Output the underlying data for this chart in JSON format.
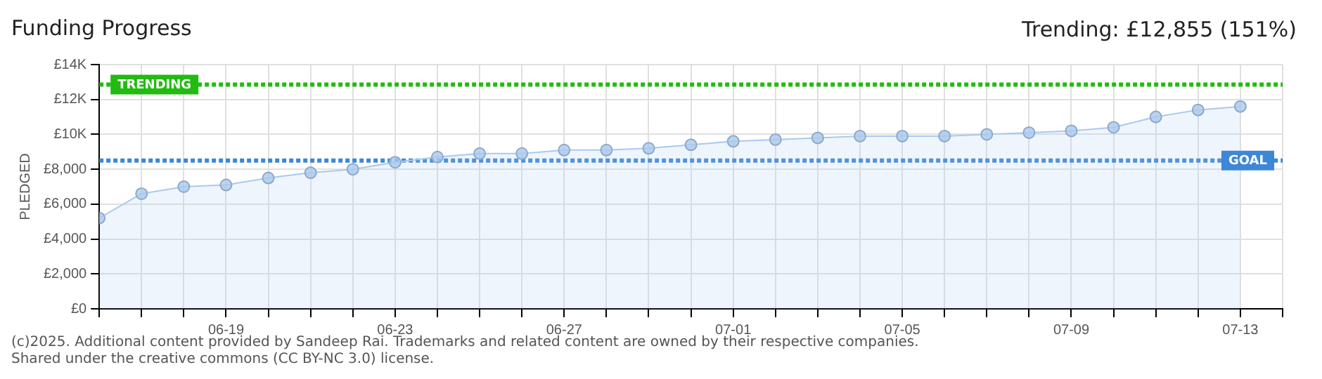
{
  "chart_data": {
    "type": "area",
    "title": "Funding Progress",
    "subtitle": "Trending: £12,855 (151%)",
    "ylabel": "PLEDGED",
    "x": [
      "--06-16",
      "--06-17",
      "--06-18",
      "--06-19",
      "--06-20",
      "--06-21",
      "--06-22",
      "--06-23",
      "--06-24",
      "--06-25",
      "--06-26",
      "--06-27",
      "--06-28",
      "--06-29",
      "--06-30",
      "--07-01",
      "--07-02",
      "--07-03",
      "--07-04",
      "--07-05",
      "--07-06",
      "--07-07",
      "--07-08",
      "--07-09",
      "--07-10",
      "--07-11",
      "--07-12",
      "--07-13"
    ],
    "series": [
      {
        "color": "#a9c9ee",
        "values": [
          5200,
          6600,
          7000,
          7100,
          7500,
          7800,
          8000,
          8400,
          8700,
          8900,
          8900,
          9100,
          9100,
          9200,
          9400,
          9600,
          9700,
          9800,
          9900,
          9900,
          9900,
          10000,
          10100,
          10200,
          10400,
          11000,
          11400,
          11600
        ]
      }
    ],
    "xlim": [
      "--06-16",
      "--07-14"
    ],
    "xticks": [
      {
        "value": "--06-16",
        "label": null
      },
      {
        "value": "--06-17",
        "label": null
      },
      {
        "value": "--06-18",
        "label": null
      },
      {
        "value": "--06-19",
        "label": "06-19"
      },
      {
        "value": "--06-20",
        "label": null
      },
      {
        "value": "--06-21",
        "label": null
      },
      {
        "value": "--06-22",
        "label": null
      },
      {
        "value": "--06-23",
        "label": "06-23"
      },
      {
        "value": "--06-24",
        "label": null
      },
      {
        "value": "--06-25",
        "label": null
      },
      {
        "value": "--06-26",
        "label": null
      },
      {
        "value": "--06-27",
        "label": "06-27"
      },
      {
        "value": "--06-28",
        "label": null
      },
      {
        "value": "--06-29",
        "label": null
      },
      {
        "value": "--06-30",
        "label": null
      },
      {
        "value": "--07-01",
        "label": "07-01"
      },
      {
        "value": "--07-02",
        "label": null
      },
      {
        "value": "--07-03",
        "label": null
      },
      {
        "value": "--07-04",
        "label": null
      },
      {
        "value": "--07-05",
        "label": "07-05"
      },
      {
        "value": "--07-06",
        "label": null
      },
      {
        "value": "--07-07",
        "label": null
      },
      {
        "value": "--07-08",
        "label": null
      },
      {
        "value": "--07-09",
        "label": "07-09"
      },
      {
        "value": "--07-10",
        "label": null
      },
      {
        "value": "--07-11",
        "label": null
      },
      {
        "value": "--07-12",
        "label": null
      },
      {
        "value": "--07-13",
        "label": "07-13"
      },
      {
        "value": "--07-14",
        "label": null
      }
    ],
    "ylim": [
      0,
      14000
    ],
    "yticks": [
      {
        "value": 0,
        "label": "£0"
      },
      {
        "value": 2000,
        "label": "£2,000"
      },
      {
        "value": 4000,
        "label": "£4,000"
      },
      {
        "value": 6000,
        "label": "£6,000"
      },
      {
        "value": 8000,
        "label": "£8,000"
      },
      {
        "value": 10000,
        "label": "£10K"
      },
      {
        "value": 12000,
        "label": "£12K"
      },
      {
        "value": 14000,
        "label": "£14K"
      }
    ],
    "ref_lines": [
      {
        "axis": "y",
        "value": 12855,
        "label": "TRENDING",
        "color": "#22bb11",
        "line_style": "dotted"
      },
      {
        "axis": "y",
        "value": 8500,
        "label": "GOAL",
        "color": "#3d87d6",
        "line_style": "dotted"
      }
    ],
    "grid": true,
    "marker": "circle",
    "legend": false,
    "annotations": [
      "(c)2025. Additional content provided by Sandeep Rai. Trademarks and related content are owned by their respective companies.",
      "Shared under the creative commons (CC BY-NC 3.0) license."
    ]
  }
}
